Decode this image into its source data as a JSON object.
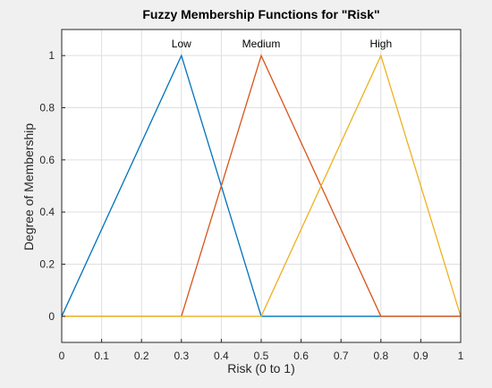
{
  "chart_data": {
    "type": "line",
    "title": "Fuzzy Membership Functions for \"Risk\"",
    "xlabel": "Risk (0 to 1)",
    "ylabel": "Degree of Membership",
    "xlim": [
      0,
      1
    ],
    "ylim": [
      -0.1,
      1.1
    ],
    "xticks": [
      0,
      0.1,
      0.2,
      0.3,
      0.4,
      0.5,
      0.6,
      0.7,
      0.8,
      0.9,
      1
    ],
    "xtick_labels": [
      "0",
      "0.1",
      "0.2",
      "0.3",
      "0.4",
      "0.5",
      "0.6",
      "0.7",
      "0.8",
      "0.9",
      "1"
    ],
    "yticks": [
      0,
      0.2,
      0.4,
      0.6,
      0.8,
      1
    ],
    "ytick_labels": [
      "0",
      "0.2",
      "0.4",
      "0.6",
      "0.8",
      "1"
    ],
    "grid": true,
    "series": [
      {
        "name": "Low",
        "color": "#0072bd",
        "x": [
          0,
          0.3,
          0.5,
          0.8,
          1
        ],
        "y": [
          0,
          1,
          0,
          0,
          0
        ]
      },
      {
        "name": "Medium",
        "color": "#d95319",
        "x": [
          0,
          0.3,
          0.5,
          0.8,
          1
        ],
        "y": [
          0,
          0,
          1,
          0,
          0
        ]
      },
      {
        "name": "High",
        "color": "#edb120",
        "x": [
          0,
          0.3,
          0.5,
          0.8,
          1
        ],
        "y": [
          0,
          0,
          0,
          1,
          0
        ]
      }
    ],
    "series_labels": [
      {
        "text": "Low",
        "x": 0.3,
        "y": 1
      },
      {
        "text": "Medium",
        "x": 0.5,
        "y": 1
      },
      {
        "text": "High",
        "x": 0.8,
        "y": 1
      }
    ]
  }
}
